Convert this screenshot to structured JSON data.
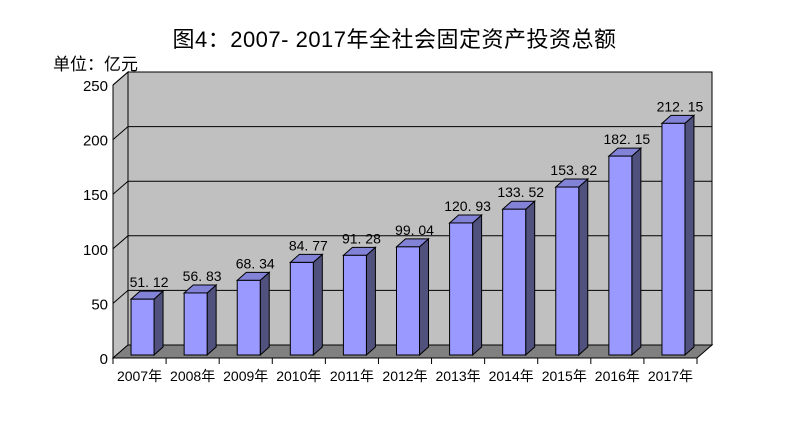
{
  "chart_data": {
    "type": "bar",
    "style": "3d-column",
    "title": "图4：2007- 2017年全社会固定资产投资总额",
    "unit_label": "单位：亿元",
    "xlabel": "",
    "ylabel": "亿元",
    "categories": [
      "2007年",
      "2008年",
      "2009年",
      "2010年",
      "2011年",
      "2012年",
      "2013年",
      "2014年",
      "2015年",
      "2016年",
      "2017年"
    ],
    "values": [
      51.12,
      56.83,
      68.34,
      84.77,
      91.28,
      99.04,
      120.93,
      133.52,
      153.82,
      182.15,
      212.15
    ],
    "value_labels": [
      "51. 12",
      "56. 83",
      "68. 34",
      "84. 77",
      "91. 28",
      "99. 04",
      "120. 93",
      "133. 52",
      "153. 82",
      "182. 15",
      "212. 15"
    ],
    "y_ticks": [
      0,
      50,
      100,
      150,
      200,
      250
    ],
    "ylim": [
      0,
      250
    ],
    "grid": true,
    "legend_position": "none",
    "colors": {
      "bar_front": "#9999FF",
      "bar_top": "#8282D7",
      "bar_side": "#51517E",
      "wall": "#C0C0C0",
      "floor": "#808080",
      "line": "#000000",
      "text": "#000000",
      "background": "#FFFFFF"
    }
  }
}
